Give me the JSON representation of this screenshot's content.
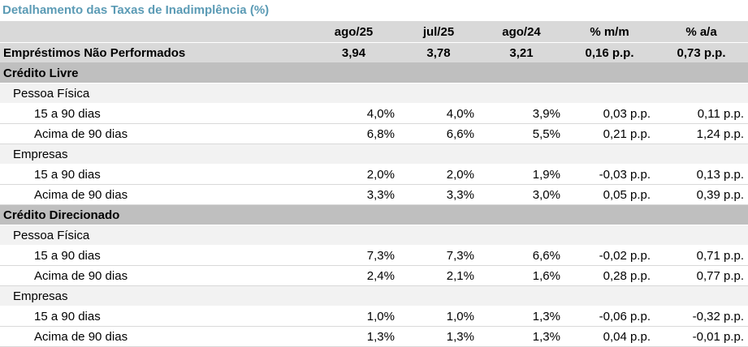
{
  "title": "Detalhamento das Taxas de Inadimplência (%)",
  "columns": [
    "ago/25",
    "jul/25",
    "ago/24",
    "% m/m",
    "% a/a"
  ],
  "total": {
    "label": "Empréstimos Não Performados",
    "values": [
      "3,94",
      "3,78",
      "3,21",
      "0,16 p.p.",
      "0,73 p.p."
    ]
  },
  "sections": [
    {
      "label": "Crédito Livre",
      "groups": [
        {
          "label": "Pessoa Física",
          "rows": [
            {
              "label": "15 a 90 dias",
              "values": [
                "4,0%",
                "4,0%",
                "3,9%",
                "0,03 p.p.",
                "0,11 p.p."
              ]
            },
            {
              "label": "Acima de 90 dias",
              "values": [
                "6,8%",
                "6,6%",
                "5,5%",
                "0,21 p.p.",
                "1,24 p.p."
              ]
            }
          ]
        },
        {
          "label": "Empresas",
          "rows": [
            {
              "label": "15 a 90 dias",
              "values": [
                "2,0%",
                "2,0%",
                "1,9%",
                "-0,03 p.p.",
                "0,13 p.p."
              ]
            },
            {
              "label": "Acima de 90 dias",
              "values": [
                "3,3%",
                "3,3%",
                "3,0%",
                "0,05 p.p.",
                "0,39 p.p."
              ]
            }
          ]
        }
      ]
    },
    {
      "label": "Crédito Direcionado",
      "groups": [
        {
          "label": "Pessoa Física",
          "rows": [
            {
              "label": "15 a 90 dias",
              "values": [
                "7,3%",
                "7,3%",
                "6,6%",
                "-0,02 p.p.",
                "0,71 p.p."
              ]
            },
            {
              "label": "Acima de 90 dias",
              "values": [
                "2,4%",
                "2,1%",
                "1,6%",
                "0,28 p.p.",
                "0,77 p.p."
              ]
            }
          ]
        },
        {
          "label": "Empresas",
          "rows": [
            {
              "label": "15 a 90 dias",
              "values": [
                "1,0%",
                "1,0%",
                "1,3%",
                "-0,06 p.p.",
                "-0,32 p.p."
              ]
            },
            {
              "label": "Acima de 90 dias",
              "values": [
                "1,3%",
                "1,3%",
                "1,3%",
                "0,04 p.p.",
                "-0,01 p.p."
              ]
            }
          ]
        }
      ]
    }
  ]
}
